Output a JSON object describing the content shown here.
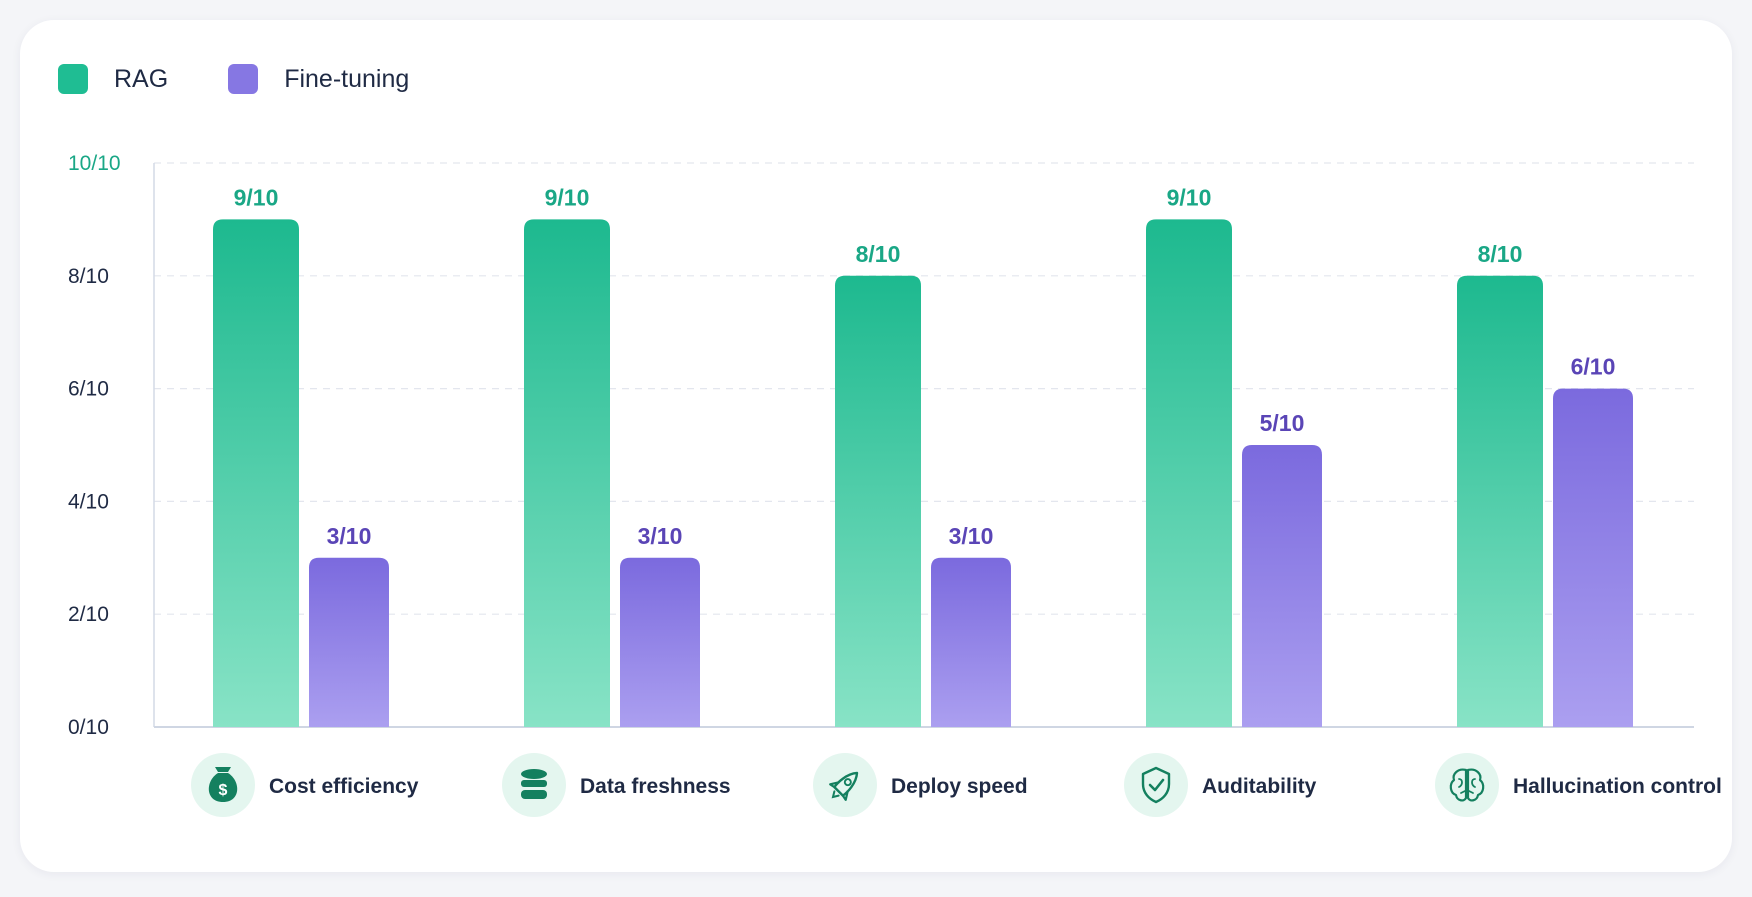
{
  "chart_data": {
    "type": "bar",
    "categories": [
      "Cost efficiency",
      "Data freshness",
      "Deploy speed",
      "Auditability",
      "Hallucination control"
    ],
    "category_icons": [
      "money-bag-icon",
      "database-icon",
      "rocket-icon",
      "shield-check-icon",
      "brain-icon"
    ],
    "series": [
      {
        "name": "RAG",
        "values": [
          9,
          9,
          8,
          9,
          8
        ],
        "labels": [
          "9/10",
          "9/10",
          "8/10",
          "9/10",
          "8/10"
        ],
        "color": "#1db98f"
      },
      {
        "name": "Fine-tuning",
        "values": [
          3,
          3,
          3,
          5,
          6
        ],
        "labels": [
          "3/10",
          "3/10",
          "3/10",
          "5/10",
          "6/10"
        ],
        "color": "#7f6fe0"
      }
    ],
    "y_ticks": [
      "0/10",
      "2/10",
      "4/10",
      "6/10",
      "8/10",
      "10/10"
    ],
    "ylim": [
      0,
      10
    ],
    "grid": true,
    "legend_position": "top-left"
  },
  "colors": {
    "rag_top": "#1db98f",
    "rag_bottom": "#88e3c6",
    "ft_top": "#7b6ade",
    "ft_bottom": "#ab9ff0",
    "rag_label": "#1aa786",
    "ft_label": "#5a45b6",
    "icon_bg": "#e4f6ef",
    "icon_fg": "#14805f"
  }
}
